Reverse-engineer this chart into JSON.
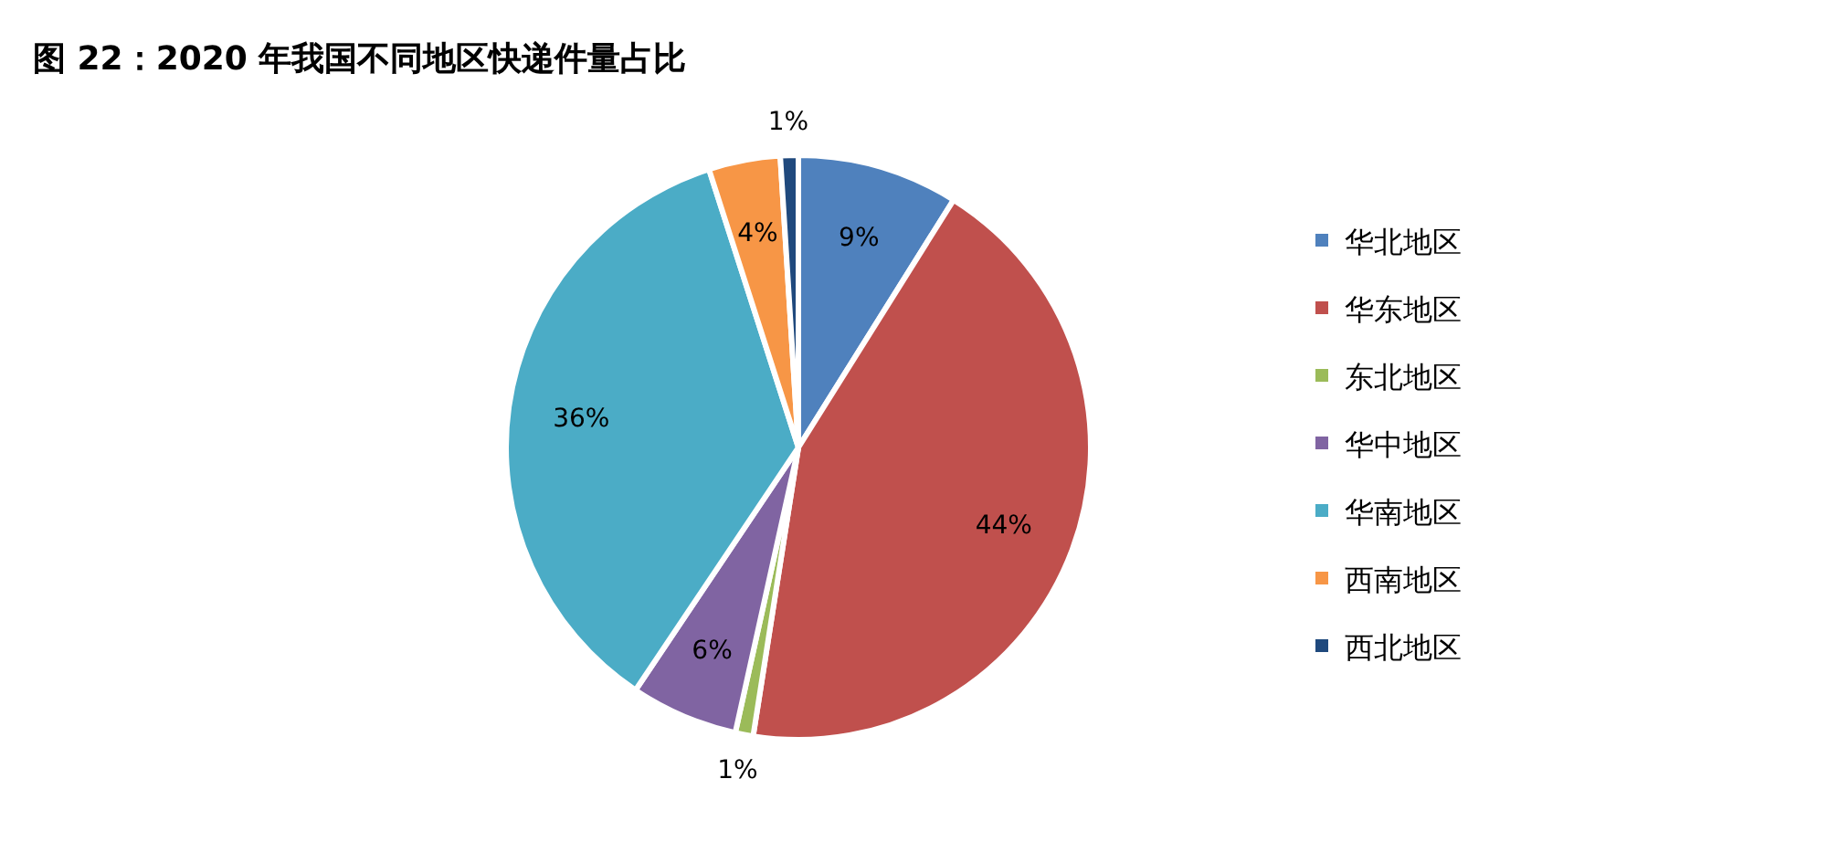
{
  "chart_data": {
    "type": "pie",
    "title": "图 22：2020 年我国不同地区快递件量占比",
    "categories": [
      "华北地区",
      "华东地区",
      "东北地区",
      "华中地区",
      "华南地区",
      "西南地区",
      "西北地区"
    ],
    "values": [
      9,
      44,
      1,
      6,
      36,
      4,
      1
    ],
    "colors": [
      "#4f81bd",
      "#c0504d",
      "#9bbb59",
      "#8064a2",
      "#4bacc6",
      "#f79646",
      "#1f497d"
    ],
    "value_labels": [
      "9%",
      "44%",
      "1%",
      "6%",
      "36%",
      "4%",
      "1%"
    ],
    "legend": "right"
  }
}
